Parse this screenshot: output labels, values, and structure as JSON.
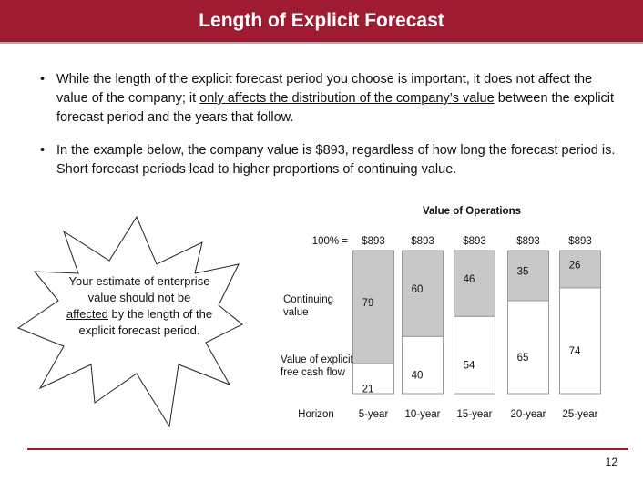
{
  "header": {
    "title": "Length of Explicit Forecast"
  },
  "bullets": [
    {
      "parts": [
        "While the length of the explicit forecast period you choose is important, it does not affect the value of the company; it ",
        "only affects the distribution of the company’s value",
        " between the explicit forecast period and the years that follow."
      ]
    },
    {
      "parts": [
        "In the example below, the company value is $893, regardless of how long the forecast period is.  Short forecast periods lead to higher proportions of continuing value."
      ]
    }
  ],
  "callout": {
    "parts": [
      "Your estimate of enterprise value ",
      "should not be affected",
      " by the length of the explicit forecast period."
    ]
  },
  "page_number": "12",
  "chart_data": {
    "type": "stacked_bar",
    "title": "Value of Operations",
    "x_label": "Horizon",
    "categories": [
      "5-year",
      "10-year",
      "15-year",
      "20-year",
      "25-year"
    ],
    "ylim": [
      0,
      100
    ],
    "totals": {
      "label": "100% =",
      "values": [
        893,
        893,
        893,
        893,
        893
      ],
      "value_labels": [
        "$893",
        "$893",
        "$893",
        "$893",
        "$893"
      ]
    },
    "series": [
      {
        "name": "Value of explicit free cash flow",
        "color": "#ffffff",
        "values": [
          21,
          40,
          54,
          65,
          74
        ]
      },
      {
        "name": "Continuing value",
        "color": "#c8c8c8",
        "values": [
          79,
          60,
          46,
          35,
          26
        ]
      }
    ]
  }
}
